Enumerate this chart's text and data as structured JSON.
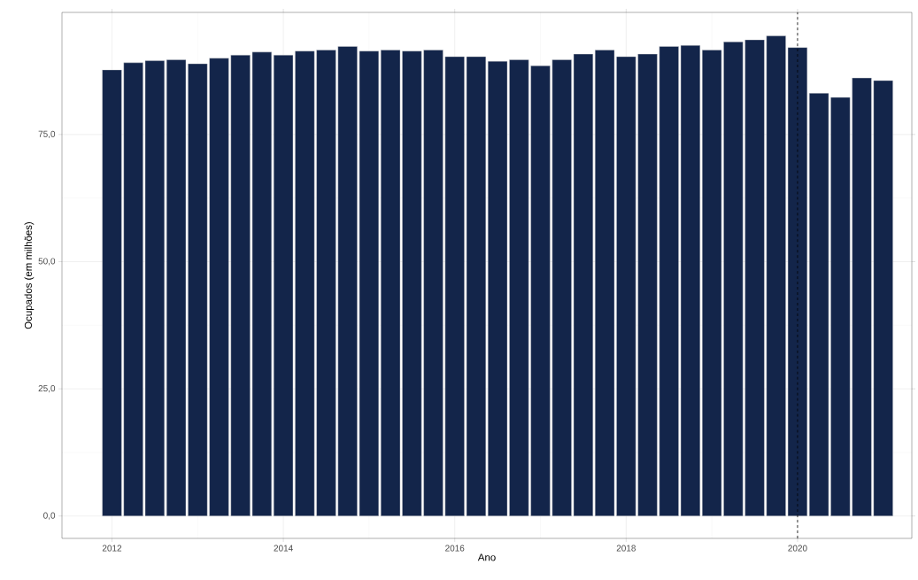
{
  "chart_data": {
    "type": "bar",
    "xlabel": "Ano",
    "ylabel": "Ocupados (em milhões)",
    "x": [
      "2012-01",
      "2012-04",
      "2012-07",
      "2012-10",
      "2013-01",
      "2013-04",
      "2013-07",
      "2013-10",
      "2014-01",
      "2014-04",
      "2014-07",
      "2014-10",
      "2015-01",
      "2015-04",
      "2015-07",
      "2015-10",
      "2016-01",
      "2016-04",
      "2016-07",
      "2016-10",
      "2017-01",
      "2017-04",
      "2017-07",
      "2017-10",
      "2018-01",
      "2018-04",
      "2018-07",
      "2018-10",
      "2019-01",
      "2019-04",
      "2019-07",
      "2019-10",
      "2020-01",
      "2020-04",
      "2020-07",
      "2020-10",
      "2021-01"
    ],
    "values": [
      87.7,
      89.1,
      89.5,
      89.7,
      88.9,
      90.0,
      90.6,
      91.2,
      90.6,
      91.4,
      91.6,
      92.3,
      91.4,
      91.6,
      91.4,
      91.6,
      90.3,
      90.3,
      89.4,
      89.7,
      88.5,
      89.7,
      90.8,
      91.6,
      90.3,
      90.8,
      92.3,
      92.5,
      91.6,
      93.2,
      93.6,
      94.4,
      92.1,
      83.1,
      82.3,
      86.1,
      85.6
    ],
    "color": "#13254a",
    "xlim": [
      "2011-06",
      "2021-05"
    ],
    "xticks": [
      "2012",
      "2014",
      "2016",
      "2018",
      "2020"
    ],
    "ylim": [
      -4.4,
      99
    ],
    "yticks": [
      {
        "value": 0,
        "label": "0,0"
      },
      {
        "value": 25,
        "label": "25,0"
      },
      {
        "value": 50,
        "label": "50,0"
      },
      {
        "value": 75,
        "label": "75,0"
      }
    ],
    "grid": true,
    "ref_lines": [
      {
        "axis": "x",
        "value": "2020-01",
        "line_style": "dashed",
        "color": "#000000"
      }
    ]
  }
}
